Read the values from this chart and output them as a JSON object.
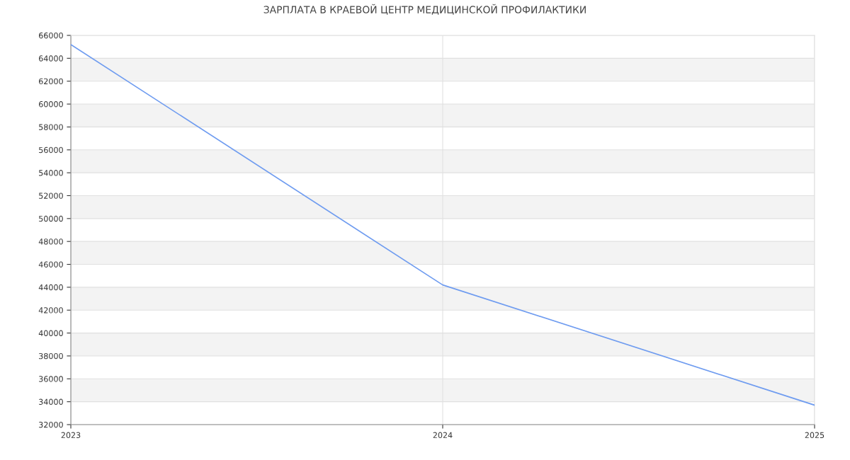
{
  "chart_data": {
    "type": "line",
    "title": "ЗАРПЛАТА В КРАЕВОЙ ЦЕНТР МЕДИЦИНСКОЙ ПРОФИЛАКТИКИ",
    "x": [
      "2023",
      "2024",
      "2025"
    ],
    "series": [
      {
        "color": "#6f9cf0",
        "values": [
          65200,
          44200,
          33700
        ]
      }
    ],
    "xlim": [
      "2023",
      "2025"
    ],
    "xticks": [
      "2023",
      "2024",
      "2025"
    ],
    "ylim": [
      32000,
      66000
    ],
    "yticks": [
      32000,
      34000,
      36000,
      38000,
      40000,
      42000,
      44000,
      46000,
      48000,
      50000,
      52000,
      54000,
      56000,
      58000,
      60000,
      62000,
      64000,
      66000
    ],
    "grid": true,
    "marker": "none",
    "line_style": "solid"
  }
}
